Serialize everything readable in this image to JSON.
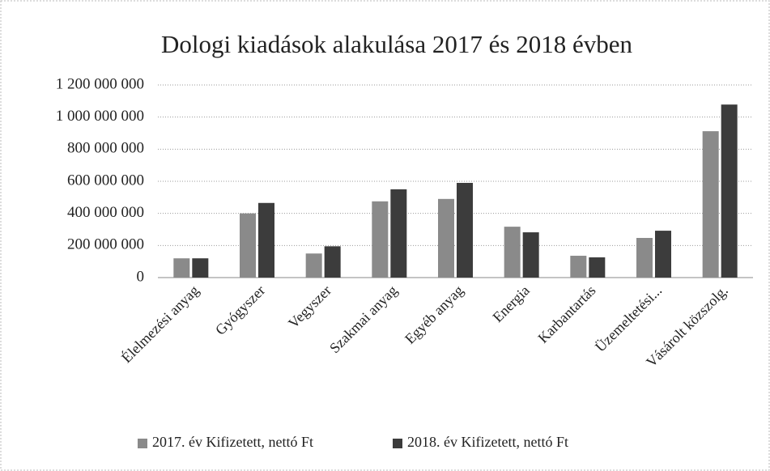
{
  "chart_data": {
    "type": "bar",
    "title": "Dologi kiadások  alakulása 2017 és 2018 évben",
    "categories": [
      "Élelmezési anyag",
      "Gyógyszer",
      "Vegyszer",
      "Szakmai anyag",
      "Egyéb anyag",
      "Energia",
      "Karbantartás",
      "Üzemeltetési...",
      "Vásárolt közszolg."
    ],
    "series": [
      {
        "name": "2017. év Kifizetett, nettó Ft",
        "color": "#8a8a8a",
        "values": [
          120000000,
          400000000,
          150000000,
          475000000,
          490000000,
          317000000,
          136000000,
          247000000,
          912000000
        ]
      },
      {
        "name": "2018. év Kifizetett, nettó Ft",
        "color": "#3c3c3c",
        "values": [
          120000000,
          465000000,
          195000000,
          550000000,
          590000000,
          282000000,
          126000000,
          292000000,
          1078000000
        ]
      }
    ],
    "ylim": [
      0,
      1200000000
    ],
    "yticks": [
      0,
      {
        "value": 200000000,
        "label": "200 000 000"
      },
      {
        "value": 400000000,
        "label": "400 000 000"
      },
      {
        "value": 600000000,
        "label": "600 000 000"
      },
      {
        "value": 800000000,
        "label": "800 000 000"
      },
      {
        "value": 1000000000,
        "label": "1 000 000 000"
      },
      {
        "value": 1200000000,
        "label": "1 200 000 000"
      }
    ],
    "grid": true,
    "legend": "bottom"
  }
}
